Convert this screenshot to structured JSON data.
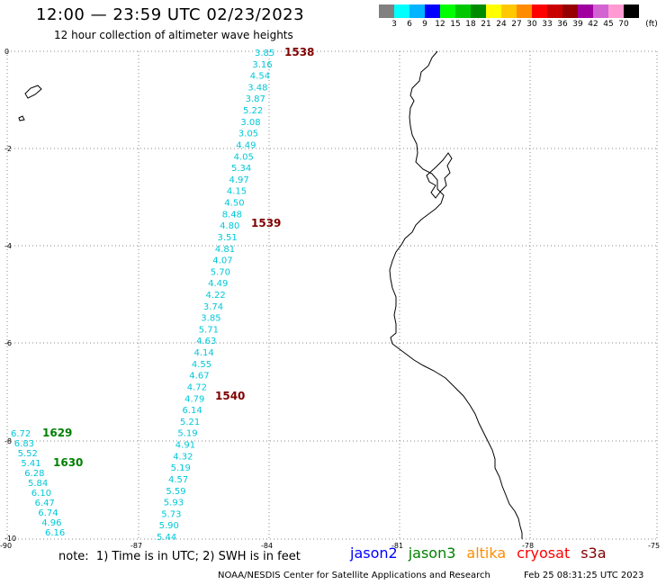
{
  "title": "12:00 — 23:59 UTC 02/23/2023",
  "subtitle": "12 hour collection of altimeter wave heights",
  "color_scale": {
    "unit": "(ft)",
    "colors": [
      "#808080",
      "#00ffff",
      "#00b4ff",
      "#0000ff",
      "#00ff00",
      "#00c800",
      "#008c00",
      "#ffff00",
      "#ffc800",
      "#ff8c00",
      "#ff0000",
      "#c80000",
      "#960000",
      "#a000a0",
      "#d264d2",
      "#ff9bd2",
      "#000000"
    ],
    "labels": [
      "3",
      "6",
      "9",
      "12",
      "15",
      "18",
      "21",
      "24",
      "27",
      "30",
      "33",
      "36",
      "39",
      "42",
      "45",
      "70"
    ]
  },
  "axes": {
    "lat_labels": [
      "0",
      "-2",
      "-4",
      "-6",
      "-8",
      "-10"
    ],
    "lon_labels": [
      "-90",
      "-87",
      "-84",
      "-81",
      "-78",
      "-75"
    ]
  },
  "tracks": {
    "track_1": [
      "3.85",
      "3.16",
      "4.54",
      "3.48",
      "3.87",
      "5.22",
      "3.08",
      "3.05",
      "4.49",
      "4.05",
      "5.34",
      "4.97",
      "4.15",
      "4.50",
      "8.48",
      "4.80",
      "3.51",
      "4.81",
      "4.07",
      "5.70",
      "4.49",
      "4.22",
      "3.74",
      "3.85",
      "5.71",
      "4.63",
      "4.14",
      "4.55",
      "4.67",
      "4.72",
      "4.79",
      "6.14",
      "5.21",
      "5.19",
      "4.91",
      "4.32",
      "5.19",
      "4.57",
      "5.59",
      "5.93",
      "5.73",
      "5.90",
      "5.44"
    ],
    "track_2": [
      "6.72",
      "6.83",
      "5.52",
      "5.41",
      "6.28",
      "5.84",
      "6.10",
      "6.47",
      "6.74",
      "4.96",
      "6.16"
    ]
  },
  "time_labels": {
    "t1538": {
      "text": "1538",
      "color": "#800000"
    },
    "t1539": {
      "text": "1539",
      "color": "#800000"
    },
    "t1540": {
      "text": "1540",
      "color": "#800000"
    },
    "t1629": {
      "text": "1629",
      "color": "#008000"
    },
    "t1630": {
      "text": "1630",
      "color": "#008000"
    }
  },
  "note": "note:  1) Time is in UTC; 2) SWH is in feet",
  "satellites": [
    {
      "name": "jason2",
      "color": "#0000ff"
    },
    {
      "name": "jason3",
      "color": "#008000"
    },
    {
      "name": "altika",
      "color": "#ff8c00"
    },
    {
      "name": "cryosat",
      "color": "#ff0000"
    },
    {
      "name": "s3a",
      "color": "#800000"
    }
  ],
  "footer_left": "NOAA/NESDIS Center for Satellite Applications and Research",
  "footer_right": "Feb 25 08:31:25 UTC 2023"
}
